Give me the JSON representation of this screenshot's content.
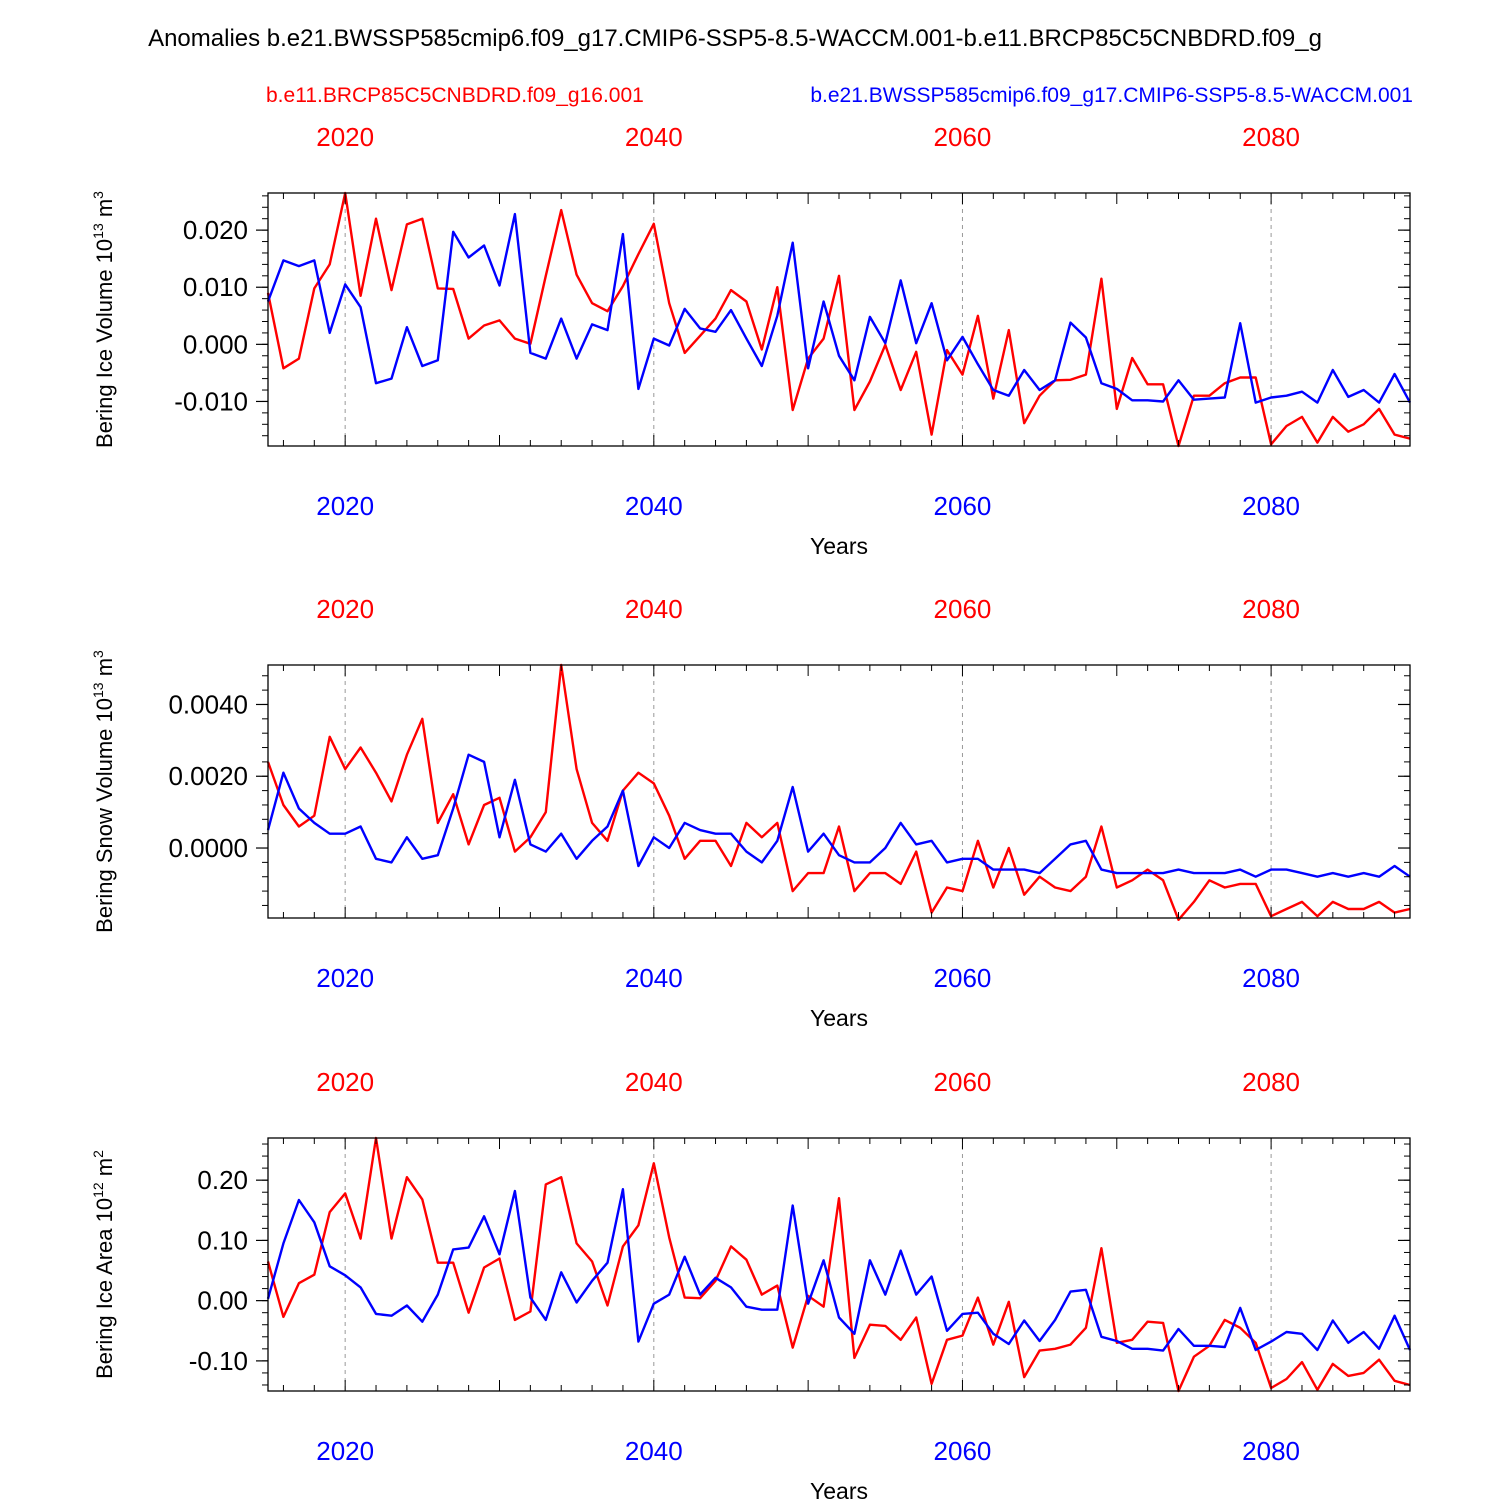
{
  "figure": {
    "title": "Anomalies b.e21.BWSSP585cmip6.f09_g17.CMIP6-SSP5-8.5-WACCM.001-b.e11.BRCP85C5CNBDRD.f09_g",
    "legend_red": "b.e11.BRCP85C5CNBDRD.f09_g16.001",
    "legend_blue": "b.e21.BWSSP585cmip6.f09_g17.CMIP6-SSP5-8.5-WACCM.001",
    "colors": {
      "red": "#ff0000",
      "blue": "#0000ff",
      "axis": "#000000",
      "grid": "#999999"
    }
  },
  "chart_data": [
    {
      "type": "line",
      "id": "ice-volume",
      "ylabel": "Bering Ice Volume 10",
      "ylabel_sup": "13",
      "ylabel_unit": " m",
      "ylabel_unit_sup": "3",
      "xlabel": "Years",
      "top_ticks": [
        "2020",
        "2040",
        "2060",
        "2080"
      ],
      "bottom_ticks": [
        "2020",
        "2040",
        "2060",
        "2080"
      ],
      "xlim": [
        2015,
        2089
      ],
      "ylim": [
        -0.0178,
        0.0265
      ],
      "y_ticks": [
        0.02,
        0.01,
        0.0,
        -0.01
      ],
      "y_tick_labels": [
        "0.020",
        "0.010",
        "0.000",
        "-0.010"
      ],
      "x_start": 2015,
      "series": [
        {
          "name": "b.e11.BRCP85C5CNBDRD.f09_g16.001",
          "color": "red",
          "values": [
            0.009,
            -0.0042,
            -0.0025,
            0.0098,
            0.014,
            0.0265,
            0.0085,
            0.022,
            0.0095,
            0.021,
            0.022,
            0.0098,
            0.0097,
            0.001,
            0.0033,
            0.0042,
            0.001,
            0.0001,
            0.012,
            0.0235,
            0.0122,
            0.0072,
            0.0058,
            0.0102,
            0.0158,
            0.0211,
            0.0072,
            -0.0015,
            0.0015,
            0.0045,
            0.0095,
            0.0075,
            -0.0009,
            0.01,
            -0.0115,
            -0.0025,
            0.001,
            0.012,
            -0.0115,
            -0.0065,
            -0.0001,
            -0.008,
            -0.0013,
            -0.0158,
            -0.001,
            -0.0053,
            0.005,
            -0.0095,
            0.0025,
            -0.0138,
            -0.009,
            -0.0063,
            -0.0062,
            -0.0053,
            0.0115,
            -0.0113,
            -0.0024,
            -0.007,
            -0.007,
            -0.0178,
            -0.009,
            -0.009,
            -0.0068,
            -0.0058,
            -0.0058,
            -0.0175,
            -0.0143,
            -0.0127,
            -0.0172,
            -0.0127,
            -0.0153,
            -0.014,
            -0.0113,
            -0.0158,
            -0.0165
          ]
        },
        {
          "name": "b.e21.BWSSP585cmip6.f09_g17.CMIP6-SSP5-8.5-WACCM.001",
          "color": "blue",
          "values": [
            0.0075,
            0.0147,
            0.0137,
            0.0147,
            0.002,
            0.0105,
            0.0065,
            -0.0068,
            -0.006,
            0.003,
            -0.0038,
            -0.0028,
            0.0197,
            0.0152,
            0.0173,
            0.0103,
            0.0228,
            -0.0015,
            -0.0025,
            0.0045,
            -0.0025,
            0.0035,
            0.0025,
            0.0193,
            -0.0078,
            0.001,
            -0.0002,
            0.0062,
            0.0028,
            0.0022,
            0.006,
            0.001,
            -0.0038,
            0.005,
            0.0178,
            -0.0042,
            0.0075,
            -0.002,
            -0.0063,
            0.0048,
            0.0002,
            0.0112,
            0.0002,
            0.0072,
            -0.0028,
            0.0013,
            -0.0035,
            -0.008,
            -0.009,
            -0.0045,
            -0.008,
            -0.0063,
            0.0038,
            0.0012,
            -0.0068,
            -0.0078,
            -0.0098,
            -0.0098,
            -0.01,
            -0.0063,
            -0.0097,
            -0.0095,
            -0.0093,
            0.0037,
            -0.0102,
            -0.0093,
            -0.009,
            -0.0083,
            -0.0102,
            -0.0045,
            -0.0092,
            -0.008,
            -0.0102,
            -0.0052,
            -0.0102
          ]
        }
      ]
    },
    {
      "type": "line",
      "id": "snow-volume",
      "ylabel": "Bering Snow Volume 10",
      "ylabel_sup": "13",
      "ylabel_unit": " m",
      "ylabel_unit_sup": "3",
      "xlabel": "Years",
      "top_ticks": [
        "2020",
        "2040",
        "2060",
        "2080"
      ],
      "bottom_ticks": [
        "2020",
        "2040",
        "2060",
        "2080"
      ],
      "xlim": [
        2015,
        2089
      ],
      "ylim": [
        -0.00195,
        0.0051
      ],
      "y_ticks": [
        0.004,
        0.002,
        0.0
      ],
      "y_tick_labels": [
        "0.0040",
        "0.0020",
        "0.0000"
      ],
      "x_start": 2015,
      "series": [
        {
          "name": "b.e11.BRCP85C5CNBDRD.f09_g16.001",
          "color": "red",
          "values": [
            0.0024,
            0.0012,
            0.0006,
            0.0009,
            0.0031,
            0.0022,
            0.0028,
            0.0021,
            0.0013,
            0.0026,
            0.0036,
            0.0007,
            0.0015,
            0.0001,
            0.0012,
            0.0014,
            -0.0001,
            0.0003,
            0.001,
            0.0051,
            0.0022,
            0.0007,
            0.0002,
            0.0016,
            0.0021,
            0.0018,
            0.0009,
            -0.0003,
            0.0002,
            0.0002,
            -0.0005,
            0.0007,
            0.0003,
            0.0007,
            -0.0012,
            -0.0007,
            -0.0007,
            0.0006,
            -0.0012,
            -0.0007,
            -0.0007,
            -0.001,
            -0.0001,
            -0.0018,
            -0.0011,
            -0.0012,
            0.0002,
            -0.0011,
            0.0,
            -0.0013,
            -0.0008,
            -0.0011,
            -0.0012,
            -0.0008,
            0.0006,
            -0.0011,
            -0.0009,
            -0.0006,
            -0.0009,
            -0.002,
            -0.0015,
            -0.0009,
            -0.0011,
            -0.001,
            -0.001,
            -0.0019,
            -0.0017,
            -0.0015,
            -0.0019,
            -0.0015,
            -0.0017,
            -0.0017,
            -0.0015,
            -0.0018,
            -0.0017
          ]
        },
        {
          "name": "b.e21.BWSSP585cmip6.f09_g17.CMIP6-SSP5-8.5-WACCM.001",
          "color": "blue",
          "values": [
            0.0005,
            0.0021,
            0.0011,
            0.0007,
            0.0004,
            0.0004,
            0.0006,
            -0.0003,
            -0.0004,
            0.0003,
            -0.0003,
            -0.0002,
            0.0011,
            0.0026,
            0.0024,
            0.0003,
            0.0019,
            0.0001,
            -0.0001,
            0.0004,
            -0.0003,
            0.0002,
            0.0006,
            0.0016,
            -0.0005,
            0.0003,
            0.0,
            0.0007,
            0.0005,
            0.0004,
            0.0004,
            -0.0001,
            -0.0004,
            0.0002,
            0.0017,
            -0.0001,
            0.0004,
            -0.0002,
            -0.0004,
            -0.0004,
            0.0,
            0.0007,
            0.0001,
            0.0002,
            -0.0004,
            -0.0003,
            -0.0003,
            -0.0006,
            -0.0006,
            -0.0006,
            -0.0007,
            -0.0003,
            0.0001,
            0.0002,
            -0.0006,
            -0.0007,
            -0.0007,
            -0.0007,
            -0.0007,
            -0.0006,
            -0.0007,
            -0.0007,
            -0.0007,
            -0.0006,
            -0.0008,
            -0.0006,
            -0.0006,
            -0.0007,
            -0.0008,
            -0.0007,
            -0.0008,
            -0.0007,
            -0.0008,
            -0.0005,
            -0.0008
          ]
        }
      ]
    },
    {
      "type": "line",
      "id": "ice-area",
      "ylabel": "Bering Ice Area 10",
      "ylabel_sup": "12",
      "ylabel_unit": " m",
      "ylabel_unit_sup": "2",
      "xlabel": "Years",
      "top_ticks": [
        "2020",
        "2040",
        "2060",
        "2080"
      ],
      "bottom_ticks": [
        "2020",
        "2040",
        "2060",
        "2080"
      ],
      "xlim": [
        2015,
        2089
      ],
      "ylim": [
        -0.15,
        0.27
      ],
      "y_ticks": [
        0.2,
        0.1,
        0.0,
        -0.1
      ],
      "y_tick_labels": [
        "0.20",
        "0.10",
        "0.00",
        "-0.10"
      ],
      "x_start": 2015,
      "series": [
        {
          "name": "b.e11.BRCP85C5CNBDRD.f09_g16.001",
          "color": "red",
          "values": [
            0.065,
            -0.027,
            0.029,
            0.043,
            0.147,
            0.178,
            0.103,
            0.27,
            0.103,
            0.205,
            0.168,
            0.063,
            0.063,
            -0.02,
            0.055,
            0.07,
            -0.032,
            -0.018,
            0.193,
            0.205,
            0.095,
            0.065,
            -0.008,
            0.09,
            0.125,
            0.228,
            0.105,
            0.005,
            0.004,
            0.033,
            0.09,
            0.068,
            0.01,
            0.025,
            -0.078,
            0.008,
            -0.01,
            0.17,
            -0.095,
            -0.04,
            -0.042,
            -0.065,
            -0.028,
            -0.138,
            -0.065,
            -0.058,
            0.005,
            -0.073,
            -0.002,
            -0.127,
            -0.083,
            -0.08,
            -0.073,
            -0.045,
            0.087,
            -0.07,
            -0.065,
            -0.035,
            -0.037,
            -0.15,
            -0.093,
            -0.075,
            -0.032,
            -0.045,
            -0.07,
            -0.145,
            -0.13,
            -0.102,
            -0.148,
            -0.105,
            -0.125,
            -0.12,
            -0.098,
            -0.133,
            -0.14
          ]
        },
        {
          "name": "b.e21.BWSSP585cmip6.f09_g17.CMIP6-SSP5-8.5-WACCM.001",
          "color": "blue",
          "values": [
            0.003,
            0.095,
            0.167,
            0.13,
            0.057,
            0.042,
            0.022,
            -0.022,
            -0.025,
            -0.008,
            -0.035,
            0.01,
            0.085,
            0.088,
            0.14,
            0.077,
            0.182,
            0.005,
            -0.032,
            0.047,
            -0.003,
            0.033,
            0.063,
            0.185,
            -0.068,
            -0.005,
            0.01,
            0.073,
            0.01,
            0.038,
            0.022,
            -0.01,
            -0.015,
            -0.015,
            0.158,
            -0.005,
            0.067,
            -0.028,
            -0.055,
            0.067,
            0.01,
            0.083,
            0.01,
            0.04,
            -0.05,
            -0.022,
            -0.02,
            -0.055,
            -0.072,
            -0.033,
            -0.067,
            -0.032,
            0.015,
            0.018,
            -0.06,
            -0.067,
            -0.08,
            -0.08,
            -0.083,
            -0.047,
            -0.075,
            -0.075,
            -0.077,
            -0.012,
            -0.082,
            -0.068,
            -0.052,
            -0.055,
            -0.082,
            -0.033,
            -0.07,
            -0.052,
            -0.08,
            -0.025,
            -0.082
          ]
        }
      ]
    }
  ]
}
